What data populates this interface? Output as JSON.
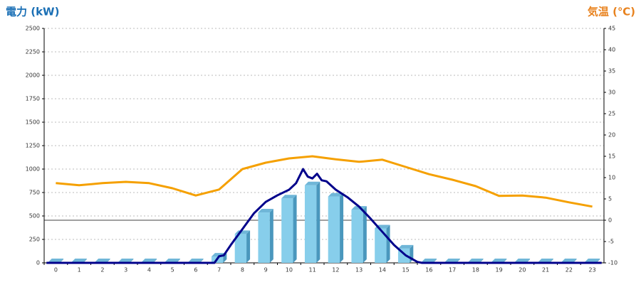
{
  "chart_data": {
    "type": "combo",
    "y_title": "電力 (kW)",
    "y2_title": "気温 (℃)",
    "categories": [
      "0",
      "1",
      "2",
      "3",
      "4",
      "5",
      "6",
      "7",
      "8",
      "9",
      "10",
      "11",
      "12",
      "13",
      "14",
      "15",
      "16",
      "17",
      "18",
      "19",
      "20",
      "21",
      "22",
      "23"
    ],
    "ylim": [
      0,
      2500
    ],
    "yticks": [
      0,
      250,
      500,
      750,
      1000,
      1250,
      1500,
      1750,
      2000,
      2250,
      2500
    ],
    "y2lim": [
      -10,
      45
    ],
    "y2ticks": [
      -10,
      -5,
      0,
      5,
      10,
      15,
      20,
      25,
      30,
      35,
      40,
      45
    ],
    "grid": true,
    "series": [
      {
        "type": "bar",
        "color": "#87ceeb",
        "values": [
          0,
          0,
          0,
          0,
          0,
          0,
          0,
          60,
          300,
          530,
          680,
          820,
          700,
          560,
          360,
          145,
          0,
          0,
          0,
          0,
          0,
          0,
          0,
          0
        ]
      },
      {
        "type": "line",
        "color": "#00008b",
        "x": [
          -0.4,
          6.8,
          7.0,
          7.2,
          7.5,
          8,
          8.5,
          9,
          9.5,
          10,
          10.3,
          10.6,
          10.8,
          11,
          11.2,
          11.4,
          11.6,
          12,
          12.5,
          13,
          13.5,
          14,
          14.5,
          15,
          15.5,
          15.7,
          23.4
        ],
        "values": [
          0,
          0,
          70,
          80,
          190,
          360,
          530,
          650,
          720,
          780,
          850,
          1000,
          920,
          900,
          950,
          880,
          870,
          780,
          700,
          600,
          470,
          330,
          190,
          80,
          10,
          0,
          0
        ]
      },
      {
        "type": "line",
        "axis": "y2",
        "color": "#f5a000",
        "values": [
          8.7,
          8.2,
          8.7,
          9,
          8.7,
          7.5,
          5.8,
          7.2,
          12,
          13.5,
          14.5,
          15,
          14.3,
          13.7,
          14.2,
          12.5,
          10.8,
          9.5,
          8,
          5.7,
          5.8,
          5.3,
          4.2,
          3.2
        ]
      }
    ]
  }
}
